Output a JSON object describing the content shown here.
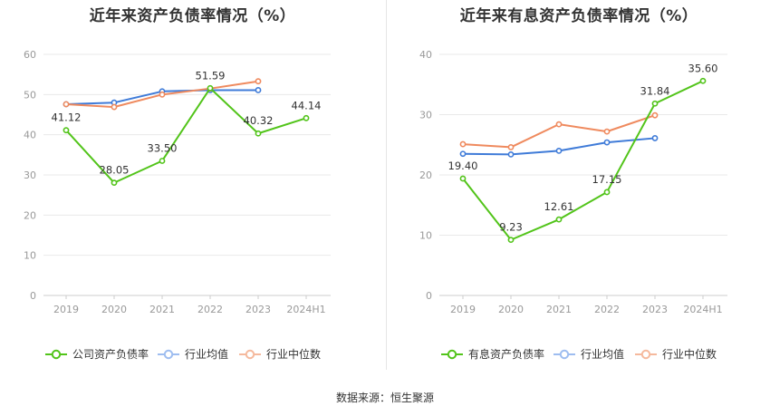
{
  "chart_data": [
    {
      "type": "line",
      "title": "近年来资产负债率情况（%）",
      "categories": [
        "2019",
        "2020",
        "2021",
        "2022",
        "2023",
        "2024H1"
      ],
      "ylim": [
        0,
        60
      ],
      "yticks": [
        0,
        10,
        20,
        30,
        40,
        50,
        60
      ],
      "grid": true,
      "legend_position": "bottom",
      "series": [
        {
          "name": "公司资产负债率",
          "color": "#52c41a",
          "values": [
            41.12,
            28.05,
            33.5,
            51.59,
            40.32,
            44.14
          ],
          "labels": [
            "41.12",
            "28.05",
            "33.50",
            "51.59",
            "40.32",
            "44.14"
          ]
        },
        {
          "name": "行业均值",
          "color": "#3f7bd8",
          "values": [
            47.6,
            48.0,
            50.8,
            51.1,
            51.1,
            null
          ]
        },
        {
          "name": "行业中位数",
          "color": "#ef8a5e",
          "values": [
            47.6,
            46.9,
            50.0,
            51.5,
            53.3,
            null
          ]
        }
      ]
    },
    {
      "type": "line",
      "title": "近年来有息资产负债率情况（%）",
      "categories": [
        "2019",
        "2020",
        "2021",
        "2022",
        "2023",
        "2024H1"
      ],
      "ylim": [
        0,
        40
      ],
      "yticks": [
        0,
        10,
        20,
        30,
        40
      ],
      "grid": true,
      "legend_position": "bottom",
      "series": [
        {
          "name": "有息资产负债率",
          "color": "#52c41a",
          "values": [
            19.4,
            9.23,
            12.61,
            17.15,
            31.84,
            35.6
          ],
          "labels": [
            "19.40",
            "9.23",
            "12.61",
            "17.15",
            "31.84",
            "35.60"
          ]
        },
        {
          "name": "行业均值",
          "color": "#3f7bd8",
          "values": [
            23.5,
            23.4,
            24.0,
            25.4,
            26.1,
            null
          ]
        },
        {
          "name": "行业中位数",
          "color": "#ef8a5e",
          "values": [
            25.1,
            24.6,
            28.4,
            27.2,
            29.9,
            null
          ]
        }
      ]
    }
  ],
  "footer": {
    "source": "数据来源：恒生聚源"
  }
}
